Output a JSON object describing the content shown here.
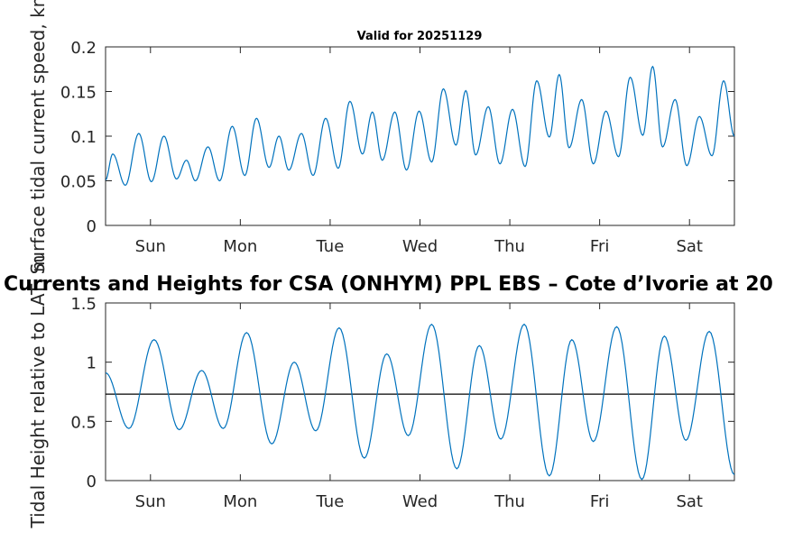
{
  "chart_data": [
    {
      "type": "line",
      "title": "Valid for 20251129",
      "ylabel": "Surface tidal current speed, kn",
      "ylim": [
        0,
        0.2
      ],
      "yticks": [
        "0",
        "0.05",
        "0.1",
        "0.15",
        "0.2"
      ],
      "xlim": [
        0,
        7
      ],
      "categories": [
        "Sun",
        "Mon",
        "Tue",
        "Wed",
        "Thu",
        "Fri",
        "Sat"
      ],
      "series": [
        {
          "name": "speed",
          "color": "#0072BD",
          "extrema": [
            [
              0.0,
              0.051
            ],
            [
              0.08,
              0.08
            ],
            [
              0.22,
              0.045
            ],
            [
              0.37,
              0.103
            ],
            [
              0.51,
              0.049
            ],
            [
              0.65,
              0.1
            ],
            [
              0.79,
              0.052
            ],
            [
              0.9,
              0.073
            ],
            [
              1.0,
              0.05
            ],
            [
              1.14,
              0.088
            ],
            [
              1.27,
              0.05
            ],
            [
              1.41,
              0.111
            ],
            [
              1.55,
              0.056
            ],
            [
              1.68,
              0.12
            ],
            [
              1.82,
              0.065
            ],
            [
              1.93,
              0.1
            ],
            [
              2.04,
              0.062
            ],
            [
              2.18,
              0.103
            ],
            [
              2.31,
              0.056
            ],
            [
              2.45,
              0.12
            ],
            [
              2.59,
              0.064
            ],
            [
              2.72,
              0.139
            ],
            [
              2.86,
              0.08
            ],
            [
              2.97,
              0.127
            ],
            [
              3.08,
              0.073
            ],
            [
              3.22,
              0.127
            ],
            [
              3.35,
              0.062
            ],
            [
              3.49,
              0.128
            ],
            [
              3.63,
              0.071
            ],
            [
              3.76,
              0.153
            ],
            [
              3.9,
              0.09
            ],
            [
              4.01,
              0.151
            ],
            [
              4.12,
              0.079
            ],
            [
              4.26,
              0.133
            ],
            [
              4.39,
              0.069
            ],
            [
              4.53,
              0.13
            ],
            [
              4.67,
              0.066
            ],
            [
              4.8,
              0.162
            ],
            [
              4.94,
              0.099
            ],
            [
              5.05,
              0.169
            ],
            [
              5.16,
              0.087
            ],
            [
              5.3,
              0.141
            ],
            [
              5.43,
              0.069
            ],
            [
              5.57,
              0.128
            ],
            [
              5.71,
              0.077
            ],
            [
              5.84,
              0.166
            ],
            [
              5.98,
              0.101
            ],
            [
              6.09,
              0.178
            ],
            [
              6.2,
              0.088
            ],
            [
              6.34,
              0.141
            ],
            [
              6.47,
              0.067
            ],
            [
              6.61,
              0.122
            ],
            [
              6.75,
              0.078
            ],
            [
              6.88,
              0.162
            ],
            [
              7.0,
              0.1
            ]
          ]
        }
      ]
    },
    {
      "type": "line",
      "title": "Currents and Heights for CSA (ONHYM) PPL EBS  – Cote d’Ivorie at 20",
      "ylabel": "Tidal Height relative to LAT, m",
      "ylim": [
        0,
        1.5
      ],
      "yticks": [
        "0",
        "0.5",
        "1",
        "1.5"
      ],
      "xlim": [
        0,
        7
      ],
      "categories": [
        "Sun",
        "Mon",
        "Tue",
        "Wed",
        "Thu",
        "Fri",
        "Sat"
      ],
      "reference_line": 0.73,
      "series": [
        {
          "name": "height",
          "color": "#0072BD",
          "extrema": [
            [
              0.0,
              0.91
            ],
            [
              0.26,
              0.44
            ],
            [
              0.54,
              1.19
            ],
            [
              0.82,
              0.43
            ],
            [
              1.07,
              0.93
            ],
            [
              1.31,
              0.44
            ],
            [
              1.57,
              1.25
            ],
            [
              1.85,
              0.31
            ],
            [
              2.1,
              1.0
            ],
            [
              2.34,
              0.42
            ],
            [
              2.6,
              1.29
            ],
            [
              2.88,
              0.19
            ],
            [
              3.13,
              1.07
            ],
            [
              3.37,
              0.38
            ],
            [
              3.63,
              1.32
            ],
            [
              3.91,
              0.1
            ],
            [
              4.16,
              1.14
            ],
            [
              4.4,
              0.35
            ],
            [
              4.66,
              1.32
            ],
            [
              4.94,
              0.04
            ],
            [
              5.19,
              1.19
            ],
            [
              5.43,
              0.33
            ],
            [
              5.69,
              1.3
            ],
            [
              5.97,
              0.01
            ],
            [
              6.22,
              1.22
            ],
            [
              6.46,
              0.34
            ],
            [
              6.72,
              1.26
            ],
            [
              7.0,
              0.05
            ]
          ]
        }
      ]
    }
  ]
}
